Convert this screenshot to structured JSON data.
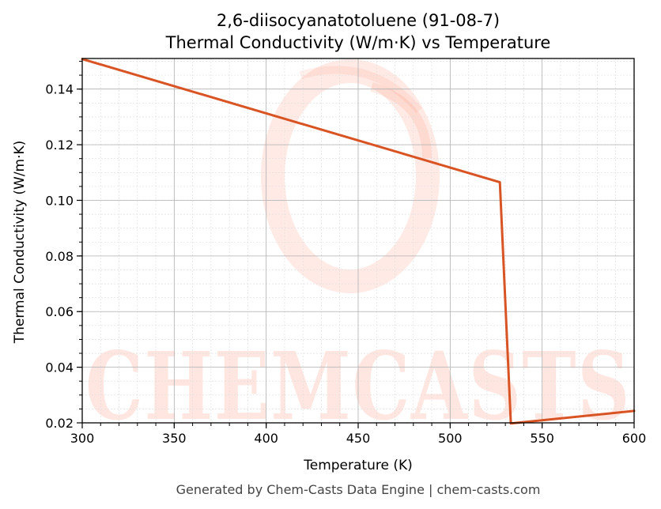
{
  "chart_data": {
    "type": "line",
    "title": "2,6-diisocyanatotoluene (91-08-7)",
    "subtitle": "Thermal Conductivity (W/m·K) vs Temperature",
    "xlabel": "Temperature (K)",
    "ylabel": "Thermal Conductivity (W/m·K)",
    "xlim": [
      300,
      600
    ],
    "ylim": [
      0.02,
      0.151
    ],
    "xticks": [
      300,
      350,
      400,
      450,
      500,
      550,
      600
    ],
    "yticks": [
      0.02,
      0.04,
      0.06,
      0.08,
      0.1,
      0.12,
      0.14
    ],
    "grid": true,
    "series": [
      {
        "color": "#d95424",
        "x": [
          300,
          527,
          533,
          600
        ],
        "y": [
          0.1508,
          0.1065,
          0.0198,
          0.0243
        ]
      }
    ]
  },
  "watermark": {
    "text": "CHEMCASTS",
    "color": "#ff6a45"
  },
  "footer": "Generated by Chem-Casts Data Engine | chem-casts.com"
}
